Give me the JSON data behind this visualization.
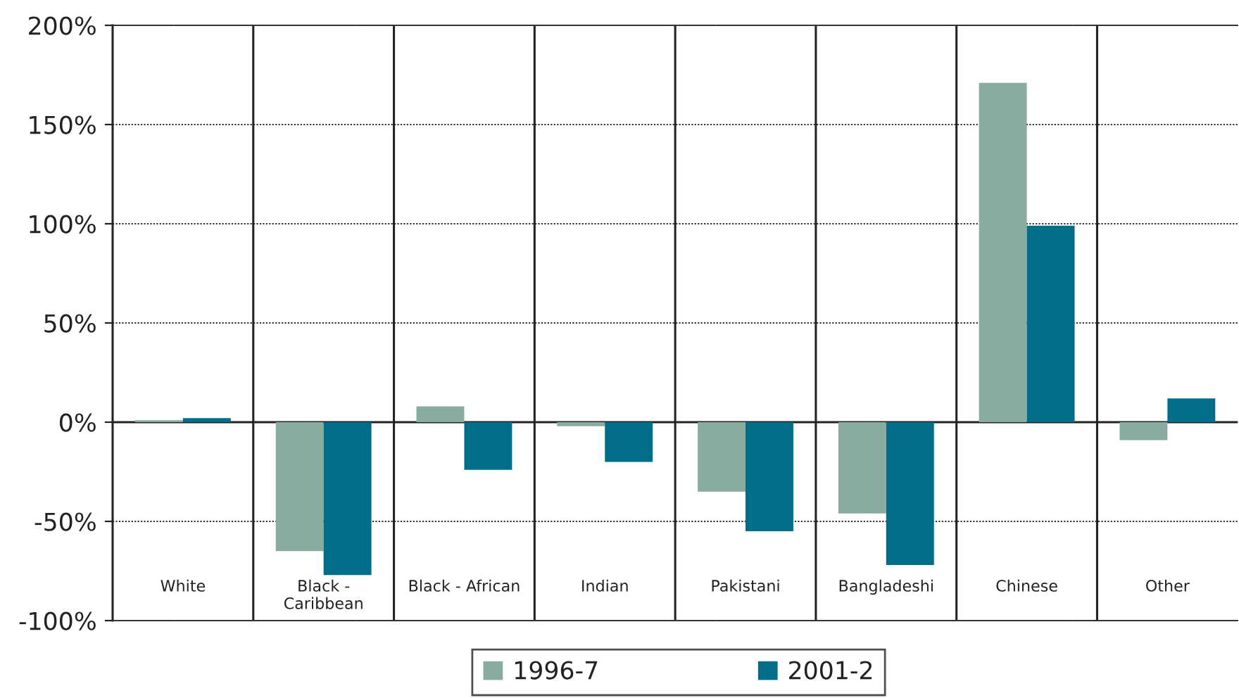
{
  "chart_data": {
    "type": "bar",
    "categories": [
      "White",
      "Black - Caribbean",
      "Black - African",
      "Indian",
      "Pakistani",
      "Bangladeshi",
      "Chinese",
      "Other"
    ],
    "series": [
      {
        "name": "1996-7",
        "color": "#8aab9f",
        "values": [
          1,
          -65,
          8,
          -2,
          -35,
          -46,
          171,
          -9
        ]
      },
      {
        "name": "2001-2",
        "color": "#006e88",
        "values": [
          2,
          -77,
          -24,
          -20,
          -55,
          -72,
          99,
          12
        ]
      }
    ],
    "ylim": [
      -100,
      200
    ],
    "yticks": [
      {
        "value": -100,
        "label": "-100%"
      },
      {
        "value": -50,
        "label": "-50%"
      },
      {
        "value": 0,
        "label": "0%"
      },
      {
        "value": 50,
        "label": "50%"
      },
      {
        "value": 100,
        "label": "100%"
      },
      {
        "value": 150,
        "label": "150%"
      },
      {
        "value": 200,
        "label": "200%"
      }
    ],
    "grid": true,
    "legend": "bottom"
  }
}
